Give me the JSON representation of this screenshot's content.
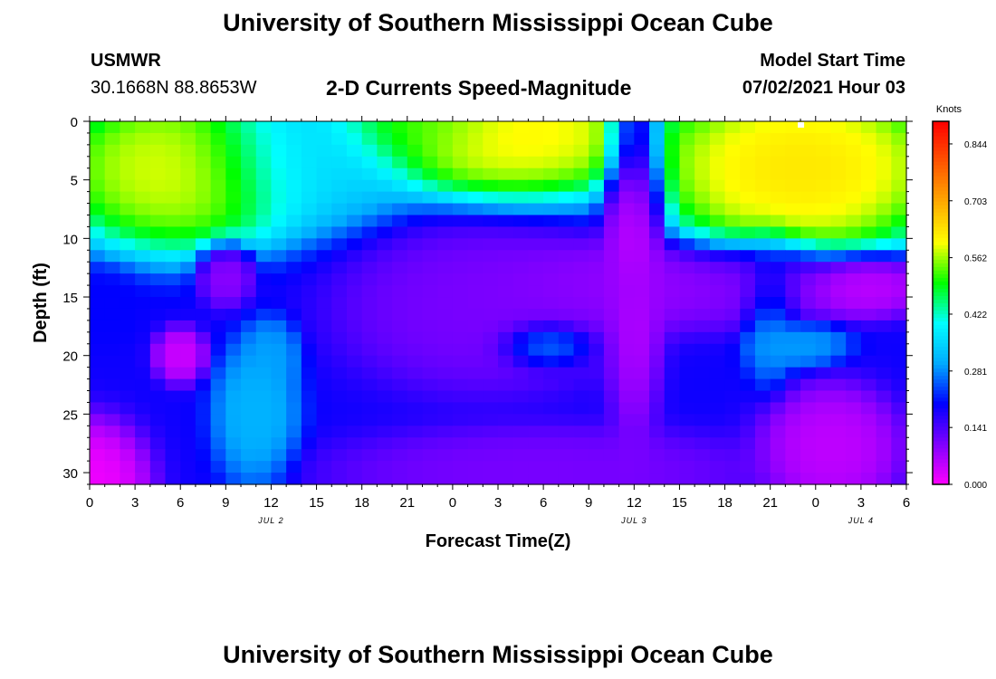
{
  "page": {
    "title_top": "University of Southern Mississippi Ocean Cube",
    "title_bottom": "University of Southern Mississippi Ocean Cube",
    "station_id": "USMWR",
    "station_coords": "30.1668N  88.8653W",
    "model_start_label": "Model Start Time",
    "model_start_value": "07/02/2021 Hour 03"
  },
  "chart_data": {
    "type": "heatmap",
    "title": "2-D Currents Speed-Magnitude",
    "xlabel": "Forecast Time(Z)",
    "ylabel": "Depth (ft)",
    "x_start_hour": 0,
    "x_end_hour": 54,
    "x_tick_labels": [
      "0",
      "3",
      "6",
      "9",
      "12",
      "15",
      "18",
      "21",
      "0",
      "3",
      "6",
      "9",
      "12",
      "15",
      "18",
      "21",
      "0",
      "3",
      "6"
    ],
    "date_labels": [
      {
        "text": "JUL 2",
        "hour": 12
      },
      {
        "text": "JUL 3",
        "hour": 36
      },
      {
        "text": "JUL 4",
        "hour": 51
      }
    ],
    "ylim": [
      0,
      31
    ],
    "y_ticks": [
      0,
      5,
      10,
      15,
      20,
      25,
      30
    ],
    "y_inverted": true,
    "colorbar": {
      "unit": "Knots",
      "min": 0.0,
      "max": 0.9,
      "tick_labels": [
        "0.000",
        "0.141",
        "0.281",
        "0.422",
        "0.562",
        "0.703",
        "0.844"
      ],
      "colors": [
        "#ff00ff",
        "#8000ff",
        "#0000ff",
        "#00aaff",
        "#00ffff",
        "#00ff00",
        "#ffff00",
        "#ffaa00",
        "#ff5500",
        "#ff0000"
      ]
    },
    "grid_resolution": {
      "hours": 54,
      "depth_levels": 31
    },
    "features": [
      {
        "x": 6,
        "y": 4,
        "v": 0.62,
        "sx": 5.5,
        "sy": 4.5
      },
      {
        "x": 28,
        "y": 1,
        "v": 0.64,
        "sx": 6.5,
        "sy": 3.6
      },
      {
        "x": 22,
        "y": 0,
        "v": 0.52,
        "sx": 4,
        "sy": 2.5
      },
      {
        "x": 14,
        "y": 3,
        "v": 0.36,
        "sx": 5,
        "sy": 4
      },
      {
        "x": 47,
        "y": 4,
        "v": 0.66,
        "sx": 6.5,
        "sy": 5
      },
      {
        "x": 36,
        "y": 8,
        "v": 0.04,
        "sx": 1.3,
        "sy": 12
      },
      {
        "x": 26,
        "y": 16,
        "v": 0.1,
        "sx": 6,
        "sy": 4.5
      },
      {
        "x": 36,
        "y": 14,
        "v": 0.08,
        "sx": 7,
        "sy": 2.5
      },
      {
        "x": 45,
        "y": 14,
        "v": 0.1,
        "sx": 3,
        "sy": 2.5
      },
      {
        "x": 51,
        "y": 14,
        "v": 0.04,
        "sx": 3,
        "sy": 1.8
      },
      {
        "x": 9,
        "y": 13,
        "v": 0.08,
        "sx": 1.2,
        "sy": 1.8
      },
      {
        "x": 6,
        "y": 20,
        "v": 0.03,
        "sx": 1.1,
        "sy": 1.5
      },
      {
        "x": 0,
        "y": 31,
        "v": 0.0,
        "sx": 2.5,
        "sy": 3.5
      },
      {
        "x": 11,
        "y": 25,
        "v": 0.32,
        "sx": 1.8,
        "sy": 4
      },
      {
        "x": 12,
        "y": 20,
        "v": 0.3,
        "sx": 1.2,
        "sy": 2
      },
      {
        "x": 30,
        "y": 19,
        "v": 0.31,
        "sx": 2,
        "sy": 1.3
      },
      {
        "x": 45,
        "y": 16,
        "v": 0.3,
        "sx": 1.2,
        "sy": 4
      },
      {
        "x": 47,
        "y": 19,
        "v": 0.3,
        "sx": 2,
        "sy": 1.3
      },
      {
        "x": 49,
        "y": 28,
        "v": 0.04,
        "sx": 3,
        "sy": 3.5
      },
      {
        "x": 30,
        "y": 30,
        "v": 0.1,
        "sx": 9,
        "sy": 2.5
      },
      {
        "x": 1,
        "y": 16,
        "v": 0.2,
        "sx": 1.5,
        "sy": 2
      }
    ],
    "background_value": 0.19
  }
}
